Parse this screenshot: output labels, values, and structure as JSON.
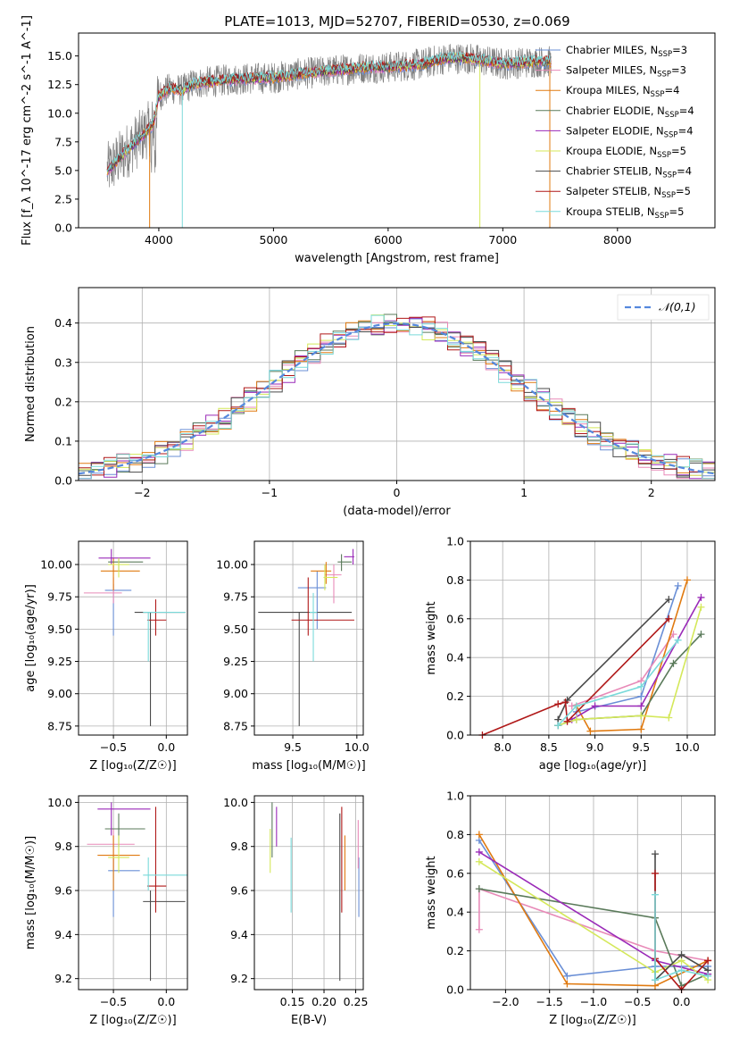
{
  "figure_title": "PLATE=1013, MJD=52707, FIBERID=0530, z=0.069",
  "colors": {
    "chabrier_miles": "#6a8fd6",
    "salpeter_miles": "#e88ab8",
    "kroupa_miles": "#e07a10",
    "chabrier_elodie": "#5a7a5a",
    "salpeter_elodie": "#9a2ab8",
    "kroupa_elodie": "#d4e85a",
    "chabrier_stelib": "#4a4a4a",
    "salpeter_stelib": "#b01818",
    "kroupa_stelib": "#7adada",
    "data": "#808080",
    "normal": "#5588dd"
  },
  "chart_data": [
    {
      "id": "spectrum",
      "type": "line",
      "title": "PLATE=1013, MJD=52707, FIBERID=0530, z=0.069",
      "xlabel": "wavelength [Angstrom, rest frame]",
      "ylabel": "Flux [f_λ 10^-17 erg cm^-2 s^-1 A^-1]",
      "xlim": [
        3300,
        8850
      ],
      "ylim": [
        0,
        17
      ],
      "xticks": [
        4000,
        5000,
        6000,
        7000,
        8000
      ],
      "yticks": [
        0.0,
        2.5,
        5.0,
        7.5,
        10.0,
        12.5,
        15.0
      ],
      "legend": [
        {
          "key": "chabrier_miles",
          "label": "Chabrier MILES, N",
          "sub": "SSP",
          "tail": "=3"
        },
        {
          "key": "salpeter_miles",
          "label": "Salpeter MILES, N",
          "sub": "SSP",
          "tail": "=3"
        },
        {
          "key": "kroupa_miles",
          "label": "Kroupa MILES, N",
          "sub": "SSP",
          "tail": "=4"
        },
        {
          "key": "chabrier_elodie",
          "label": "Chabrier ELODIE, N",
          "sub": "SSP",
          "tail": "=4"
        },
        {
          "key": "salpeter_elodie",
          "label": "Salpeter ELODIE, N",
          "sub": "SSP",
          "tail": "=4"
        },
        {
          "key": "kroupa_elodie",
          "label": "Kroupa ELODIE, N",
          "sub": "SSP",
          "tail": "=5"
        },
        {
          "key": "chabrier_stelib",
          "label": "Chabrier STELIB, N",
          "sub": "SSP",
          "tail": "=4"
        },
        {
          "key": "salpeter_stelib",
          "label": "Salpeter STELIB, N",
          "sub": "SSP",
          "tail": "=5"
        },
        {
          "key": "kroupa_stelib",
          "label": "Kroupa STELIB, N",
          "sub": "SSP",
          "tail": "=5"
        }
      ],
      "model_continuum": {
        "x": [
          3550,
          3650,
          3700,
          3800,
          3850,
          3900,
          3950,
          4000,
          4100,
          4200,
          4300,
          4500,
          4700,
          5000,
          5200,
          5500,
          5800,
          6000,
          6300,
          6500,
          6700,
          7000,
          7300,
          7400
        ],
        "y": [
          5.0,
          6.0,
          6.5,
          7.5,
          8.0,
          8.5,
          9.0,
          11.5,
          12.2,
          12.0,
          12.6,
          12.8,
          13.0,
          13.1,
          13.4,
          13.7,
          14.0,
          14.0,
          14.3,
          14.8,
          14.8,
          14.3,
          14.5,
          14.5
        ]
      },
      "data_extent": [
        3550,
        7420
      ]
    },
    {
      "id": "residuals",
      "type": "line",
      "xlabel": "(data-model)/error",
      "ylabel": "Normed distribution",
      "xlim": [
        -2.5,
        2.5
      ],
      "ylim": [
        0,
        0.49
      ],
      "xticks": [
        -2,
        -1,
        0,
        1,
        2
      ],
      "yticks": [
        0.0,
        0.1,
        0.2,
        0.3,
        0.4
      ],
      "normal_label": "𝒩(0,1)",
      "bins_start": -2.5,
      "bin_width": 0.1
    },
    {
      "id": "age_vs_Z",
      "type": "scatter",
      "xlabel": "Z [log₁₀(Z/Z☉)]",
      "ylabel": "age  [log₁₀(age/yr)]",
      "xlim": [
        -0.83,
        0.2
      ],
      "ylim": [
        8.68,
        10.18
      ],
      "xticks": [
        -0.5,
        0.0
      ],
      "yticks": [
        8.75,
        9.0,
        9.25,
        9.5,
        9.75,
        10.0
      ],
      "points": [
        {
          "key": "chabrier_miles",
          "x": -0.5,
          "y": 9.8,
          "xe": [
            -0.58,
            -0.33
          ],
          "ye": [
            9.45,
            9.85
          ]
        },
        {
          "key": "salpeter_miles",
          "x": -0.5,
          "y": 9.78,
          "xe": [
            -0.78,
            -0.42
          ],
          "ye": [
            9.7,
            9.9
          ]
        },
        {
          "key": "kroupa_miles",
          "x": -0.5,
          "y": 9.95,
          "xe": [
            -0.62,
            -0.25
          ],
          "ye": [
            9.8,
            10.05
          ]
        },
        {
          "key": "chabrier_elodie",
          "x": -0.45,
          "y": 10.02,
          "xe": [
            -0.55,
            -0.22
          ],
          "ye": [
            9.95,
            10.05
          ]
        },
        {
          "key": "salpeter_elodie",
          "x": -0.52,
          "y": 10.05,
          "xe": [
            -0.64,
            -0.15
          ],
          "ye": [
            10.0,
            10.12
          ]
        },
        {
          "key": "kroupa_elodie",
          "x": -0.45,
          "y": 10.0,
          "xe": [
            -0.55,
            -0.35
          ],
          "ye": [
            9.9,
            10.05
          ]
        },
        {
          "key": "chabrier_stelib",
          "x": -0.15,
          "y": 9.63,
          "xe": [
            -0.3,
            0.18
          ],
          "ye": [
            8.75,
            9.63
          ]
        },
        {
          "key": "salpeter_stelib",
          "x": -0.1,
          "y": 9.57,
          "xe": [
            -0.18,
            0.0
          ],
          "ye": [
            9.45,
            9.73
          ]
        },
        {
          "key": "kroupa_stelib",
          "x": -0.17,
          "y": 9.63,
          "xe": [
            -0.22,
            0.18
          ],
          "ye": [
            9.25,
            9.63
          ]
        }
      ]
    },
    {
      "id": "age_vs_mass",
      "type": "scatter",
      "xlabel": "mass [log₁₀(M/M☉)]",
      "ylabel": "",
      "xlim": [
        9.2,
        10.05
      ],
      "ylim": [
        8.68,
        10.18
      ],
      "xticks": [
        9.5,
        10.0
      ],
      "yticks": [
        8.75,
        9.0,
        9.25,
        9.5,
        9.75,
        10.0
      ],
      "points": [
        {
          "key": "chabrier_miles",
          "x": 9.69,
          "y": 9.82,
          "xe": [
            9.54,
            9.76
          ],
          "ye": [
            9.5,
            9.95
          ]
        },
        {
          "key": "salpeter_miles",
          "x": 9.82,
          "y": 9.92,
          "xe": [
            9.75,
            9.88
          ],
          "ye": [
            9.7,
            10.0
          ]
        },
        {
          "key": "kroupa_miles",
          "x": 9.76,
          "y": 9.95,
          "xe": [
            9.64,
            9.8
          ],
          "ye": [
            9.85,
            10.02
          ]
        },
        {
          "key": "chabrier_elodie",
          "x": 9.88,
          "y": 10.02,
          "xe": [
            9.85,
            9.96
          ],
          "ye": [
            9.95,
            10.08
          ]
        },
        {
          "key": "salpeter_elodie",
          "x": 9.97,
          "y": 10.06,
          "xe": [
            9.9,
            9.98
          ],
          "ye": [
            10.0,
            10.12
          ]
        },
        {
          "key": "kroupa_elodie",
          "x": 9.75,
          "y": 9.9,
          "xe": [
            9.74,
            9.85
          ],
          "ye": [
            9.8,
            10.0
          ]
        },
        {
          "key": "chabrier_stelib",
          "x": 9.55,
          "y": 9.63,
          "xe": [
            9.23,
            9.96
          ],
          "ye": [
            8.75,
            9.63
          ]
        },
        {
          "key": "salpeter_stelib",
          "x": 9.62,
          "y": 9.57,
          "xe": [
            9.49,
            9.98
          ],
          "ye": [
            9.45,
            9.9
          ]
        },
        {
          "key": "kroupa_stelib",
          "x": 9.66,
          "y": 9.63,
          "xe": [
            9.63,
            9.69
          ],
          "ye": [
            9.25,
            9.78
          ]
        }
      ]
    },
    {
      "id": "mass_vs_Z",
      "type": "scatter",
      "xlabel": "Z [log₁₀(Z/Z☉)]",
      "ylabel": "mass [log₁₀(M/M☉)]",
      "xlim": [
        -0.83,
        0.2
      ],
      "ylim": [
        9.15,
        10.03
      ],
      "xticks": [
        -0.5,
        0.0
      ],
      "yticks": [
        9.2,
        9.4,
        9.6,
        9.8,
        10.0
      ],
      "points": [
        {
          "key": "chabrier_miles",
          "x": -0.5,
          "y": 9.69,
          "xe": [
            -0.55,
            -0.25
          ],
          "ye": [
            9.48,
            9.75
          ]
        },
        {
          "key": "salpeter_miles",
          "x": -0.5,
          "y": 9.81,
          "xe": [
            -0.75,
            -0.3
          ],
          "ye": [
            9.7,
            9.88
          ]
        },
        {
          "key": "kroupa_miles",
          "x": -0.5,
          "y": 9.76,
          "xe": [
            -0.65,
            -0.25
          ],
          "ye": [
            9.6,
            9.85
          ]
        },
        {
          "key": "chabrier_elodie",
          "x": -0.45,
          "y": 9.88,
          "xe": [
            -0.58,
            -0.2
          ],
          "ye": [
            9.8,
            9.95
          ]
        },
        {
          "key": "salpeter_elodie",
          "x": -0.52,
          "y": 9.97,
          "xe": [
            -0.65,
            -0.15
          ],
          "ye": [
            9.85,
            10.0
          ]
        },
        {
          "key": "kroupa_elodie",
          "x": -0.45,
          "y": 9.75,
          "xe": [
            -0.55,
            -0.35
          ],
          "ye": [
            9.68,
            9.85
          ]
        },
        {
          "key": "chabrier_stelib",
          "x": -0.15,
          "y": 9.55,
          "xe": [
            -0.22,
            0.18
          ],
          "ye": [
            9.19,
            9.6
          ]
        },
        {
          "key": "salpeter_stelib",
          "x": -0.1,
          "y": 9.62,
          "xe": [
            -0.18,
            0.0
          ],
          "ye": [
            9.5,
            9.98
          ]
        },
        {
          "key": "kroupa_stelib",
          "x": -0.17,
          "y": 9.67,
          "xe": [
            -0.22,
            0.2
          ],
          "ye": [
            9.6,
            9.75
          ]
        }
      ]
    },
    {
      "id": "mass_vs_EBV",
      "type": "scatter",
      "xlabel": "E(B-V)",
      "ylabel": "",
      "xlim": [
        0.09,
        0.262
      ],
      "ylim": [
        9.15,
        10.03
      ],
      "xticks": [
        0.15,
        0.2,
        0.25
      ],
      "yticks": [
        9.2,
        9.4,
        9.6,
        9.8,
        10.0
      ],
      "points": [
        {
          "key": "chabrier_miles",
          "x": 0.255,
          "y": 9.75,
          "ye": [
            9.48,
            9.75
          ]
        },
        {
          "key": "salpeter_miles",
          "x": 0.254,
          "y": 9.8,
          "ye": [
            9.7,
            9.92
          ]
        },
        {
          "key": "kroupa_miles",
          "x": 0.233,
          "y": 9.8,
          "ye": [
            9.6,
            9.85
          ]
        },
        {
          "key": "chabrier_elodie",
          "x": 0.118,
          "y": 9.9,
          "ye": [
            9.75,
            10.0
          ]
        },
        {
          "key": "salpeter_elodie",
          "x": 0.125,
          "y": 9.9,
          "ye": [
            9.8,
            9.98
          ]
        },
        {
          "key": "kroupa_elodie",
          "x": 0.115,
          "y": 9.75,
          "ye": [
            9.68,
            9.88
          ]
        },
        {
          "key": "chabrier_stelib",
          "x": 0.225,
          "y": 9.55,
          "ye": [
            9.19,
            9.95
          ]
        },
        {
          "key": "salpeter_stelib",
          "x": 0.228,
          "y": 9.62,
          "ye": [
            9.5,
            9.98
          ]
        },
        {
          "key": "kroupa_stelib",
          "x": 0.148,
          "y": 9.67,
          "ye": [
            9.5,
            9.84
          ]
        }
      ]
    },
    {
      "id": "weight_vs_age",
      "type": "line",
      "xlabel": "age  [log₁₀(age/yr)]",
      "ylabel": "mass weight",
      "xlim": [
        7.65,
        10.3
      ],
      "ylim": [
        0,
        1.0
      ],
      "xticks": [
        8.0,
        8.5,
        9.0,
        9.5,
        10.0
      ],
      "yticks": [
        0.0,
        0.2,
        0.4,
        0.6,
        0.8,
        1.0
      ],
      "series": [
        {
          "key": "chabrier_miles",
          "x": [
            8.8,
            9.5,
            9.9
          ],
          "y": [
            0.12,
            0.2,
            0.77
          ]
        },
        {
          "key": "salpeter_miles",
          "x": [
            8.75,
            9.5,
            9.85
          ],
          "y": [
            0.15,
            0.28,
            0.52
          ]
        },
        {
          "key": "kroupa_miles",
          "x": [
            8.8,
            8.95,
            9.5,
            10.0
          ],
          "y": [
            0.15,
            0.02,
            0.03,
            0.8
          ]
        },
        {
          "key": "chabrier_elodie",
          "x": [
            8.6,
            8.8,
            9.5,
            9.85,
            10.15
          ],
          "y": [
            0.05,
            0.08,
            0.1,
            0.37,
            0.52
          ]
        },
        {
          "key": "salpeter_elodie",
          "x": [
            8.75,
            9.0,
            9.5,
            10.15
          ],
          "y": [
            0.08,
            0.15,
            0.15,
            0.71
          ]
        },
        {
          "key": "kroupa_elodie",
          "x": [
            8.6,
            8.8,
            9.5,
            9.8,
            10.15
          ],
          "y": [
            0.05,
            0.08,
            0.1,
            0.09,
            0.66
          ]
        },
        {
          "key": "chabrier_stelib",
          "x": [
            8.6,
            8.6,
            8.7,
            9.8
          ],
          "y": [
            0.05,
            0.08,
            0.18,
            0.7
          ]
        },
        {
          "key": "salpeter_stelib",
          "x": [
            7.78,
            8.6,
            8.68,
            8.7,
            9.8
          ],
          "y": [
            0.0,
            0.16,
            0.17,
            0.07,
            0.6
          ]
        },
        {
          "key": "kroupa_stelib",
          "x": [
            8.6,
            8.8,
            9.5,
            9.9
          ],
          "y": [
            0.05,
            0.15,
            0.25,
            0.49
          ]
        }
      ]
    },
    {
      "id": "weight_vs_Z",
      "type": "line",
      "xlabel": "Z [log₁₀(Z/Z☉)]",
      "ylabel": "mass weight",
      "xlim": [
        -2.4,
        0.38
      ],
      "ylim": [
        0,
        1.0
      ],
      "xticks": [
        -2.0,
        -1.5,
        -1.0,
        -0.5,
        0.0
      ],
      "yticks": [
        0.0,
        0.2,
        0.4,
        0.6,
        0.8,
        1.0
      ],
      "series": [
        {
          "key": "chabrier_miles",
          "x": [
            -2.3,
            -1.3,
            -0.3,
            0.3
          ],
          "y": [
            0.77,
            0.07,
            0.12,
            0.12
          ]
        },
        {
          "key": "salpeter_miles",
          "x": [
            -2.3,
            -2.3,
            -0.3,
            0.3
          ],
          "y": [
            0.31,
            0.52,
            0.2,
            0.15
          ]
        },
        {
          "key": "kroupa_miles",
          "x": [
            -2.3,
            -1.3,
            -0.3,
            0.3
          ],
          "y": [
            0.8,
            0.03,
            0.02,
            0.15
          ]
        },
        {
          "key": "chabrier_elodie",
          "x": [
            -2.3,
            -0.3,
            0.0,
            0.3
          ],
          "y": [
            0.52,
            0.37,
            0.02,
            0.08
          ]
        },
        {
          "key": "salpeter_elodie",
          "x": [
            -2.3,
            -0.3,
            0.3
          ],
          "y": [
            0.71,
            0.15,
            0.08
          ]
        },
        {
          "key": "kroupa_elodie",
          "x": [
            -2.3,
            -0.3,
            0.0,
            0.3
          ],
          "y": [
            0.66,
            0.09,
            0.15,
            0.05
          ]
        },
        {
          "key": "chabrier_stelib",
          "x": [
            -0.3,
            -0.3,
            0.0,
            0.3
          ],
          "y": [
            0.7,
            0.05,
            0.18,
            0.1
          ]
        },
        {
          "key": "salpeter_stelib",
          "x": [
            -0.3,
            -0.3,
            0.0,
            0.3
          ],
          "y": [
            0.6,
            0.16,
            0.0,
            0.15
          ]
        },
        {
          "key": "kroupa_stelib",
          "x": [
            -0.3,
            -0.3,
            0.0,
            0.3
          ],
          "y": [
            0.49,
            0.05,
            0.1,
            0.07
          ]
        }
      ]
    }
  ]
}
